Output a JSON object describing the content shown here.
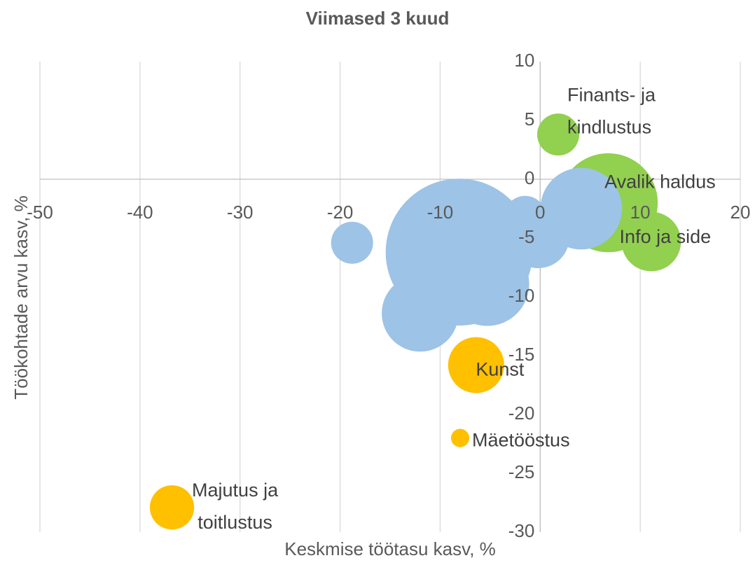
{
  "chart_data": {
    "type": "bubble",
    "title": "Viimased 3 kuud",
    "x_label": "Keskmise töötasu kasv, %",
    "y_label": "Töökohtade arvu kasv, %",
    "xlim": [
      -50,
      20
    ],
    "xticks": [
      -50,
      -40,
      -30,
      -20,
      -10,
      0,
      10,
      20
    ],
    "ylim": [
      -30,
      10
    ],
    "yticks": [
      -30,
      -25,
      -20,
      -15,
      -10,
      -5,
      0,
      5,
      10
    ],
    "grid": true,
    "x": [
      6.8,
      -18.8,
      -8.0,
      -8.1,
      -5.3,
      -12.0,
      -1.5,
      -0.2,
      4.1,
      1.8,
      11.1,
      -6.4,
      -8.0,
      -36.8
    ],
    "y": [
      -2.0,
      -5.4,
      -2.6,
      -6.2,
      -8.9,
      -11.4,
      -3.2,
      -4.9,
      -2.5,
      3.8,
      -5.3,
      -15.8,
      -22.0,
      -27.9
    ],
    "sizes": [
      50,
      9,
      16,
      110,
      36,
      30,
      9,
      20,
      34,
      9,
      18,
      16,
      1.7,
      10
    ],
    "colors": [
      "#92d050",
      "#9dc3e6",
      "#9dc3e6",
      "#9dc3e6",
      "#9dc3e6",
      "#9dc3e6",
      "#9dc3e6",
      "#9dc3e6",
      "#9dc3e6",
      "#92d050",
      "#92d050",
      "#ffc000",
      "#ffc000",
      "#ffc000"
    ],
    "labels": [
      [
        "Avalik haldus"
      ],
      null,
      null,
      null,
      null,
      null,
      null,
      null,
      null,
      [
        "Finants- ja",
        "kindlustus"
      ],
      [
        "Info ja side"
      ],
      [
        "Kunst"
      ],
      [
        "Mäetööstus"
      ],
      [
        "Majutus ja",
        "toitlustus"
      ]
    ]
  }
}
